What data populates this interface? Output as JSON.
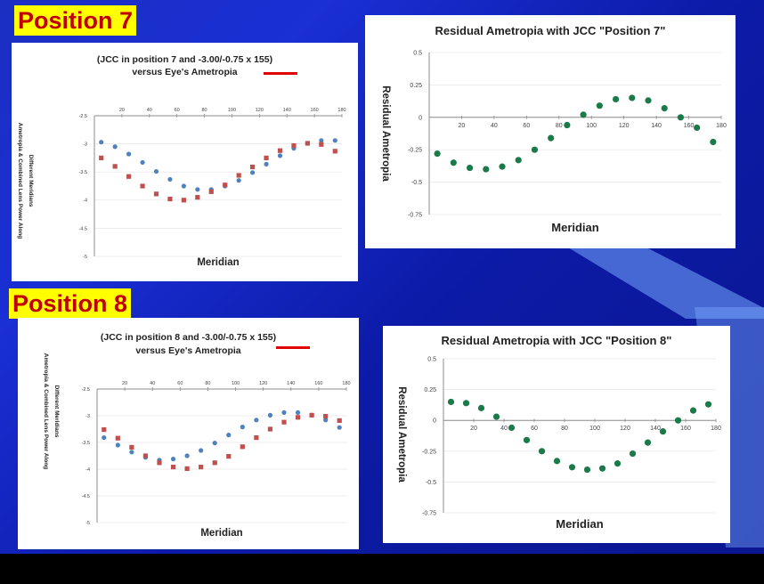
{
  "slide": {
    "position7_label": "Position 7",
    "position8_label": "Position 8"
  },
  "colors": {
    "blue_series": "#4f81bd",
    "red_series": "#c0504d",
    "residual": "#1b7a4a",
    "label_bg": "#ffff00",
    "label_text": "#c00000"
  },
  "chart_data": [
    {
      "id": "p7_power",
      "type": "scatter",
      "title_line1": "(JCC in position 7 and -3.00/-0.75 x 155)",
      "title_line2": "versus Eye's Ametropia",
      "xlabel": "Meridian",
      "ylabel_line1": "Ametropia & Combined Lens Power Along",
      "ylabel_line2": "Different Meridians",
      "xlim": [
        0,
        180
      ],
      "ylim": [
        -5,
        -2.5
      ],
      "xticks": [
        20,
        40,
        60,
        80,
        100,
        120,
        140,
        160,
        180
      ],
      "yticks": [
        -2.5,
        -3,
        -3.5,
        -4,
        -4.5,
        -5
      ],
      "series": [
        {
          "name": "Eye",
          "color": "blue",
          "x": [
            5,
            15,
            25,
            35,
            45,
            55,
            65,
            75,
            85,
            95,
            105,
            115,
            125,
            135,
            145,
            155,
            165,
            175
          ],
          "y": [
            -2.97,
            -3.05,
            -3.18,
            -3.33,
            -3.49,
            -3.63,
            -3.75,
            -3.81,
            -3.81,
            -3.75,
            -3.65,
            -3.51,
            -3.36,
            -3.21,
            -3.08,
            -2.99,
            -2.94,
            -2.94
          ]
        },
        {
          "name": "Combined",
          "color": "red",
          "x": [
            5,
            15,
            25,
            35,
            45,
            55,
            65,
            75,
            85,
            95,
            105,
            115,
            125,
            135,
            145,
            155,
            165,
            175
          ],
          "y": [
            -3.25,
            -3.4,
            -3.58,
            -3.75,
            -3.89,
            -3.98,
            -4.0,
            -3.95,
            -3.85,
            -3.73,
            -3.56,
            -3.41,
            -3.25,
            -3.12,
            -3.03,
            -2.99,
            -3.01,
            -3.13
          ]
        }
      ]
    },
    {
      "id": "p7_resid",
      "type": "scatter",
      "title": "Residual Ametropia with JCC \"Position 7\"",
      "xlabel": "Meridian",
      "ylabel": "Residual Ametropia",
      "xlim": [
        0,
        180
      ],
      "ylim": [
        -0.75,
        0.5
      ],
      "xticks": [
        20,
        40,
        60,
        80,
        100,
        120,
        140,
        160,
        180
      ],
      "yticks": [
        0.5,
        0.25,
        0,
        -0.25,
        -0.5,
        -0.75
      ],
      "series": [
        {
          "name": "Residual",
          "color": "green",
          "x": [
            5,
            15,
            25,
            35,
            45,
            55,
            65,
            75,
            85,
            95,
            105,
            115,
            125,
            135,
            145,
            155,
            165,
            175
          ],
          "y": [
            -0.28,
            -0.35,
            -0.39,
            -0.4,
            -0.38,
            -0.33,
            -0.25,
            -0.16,
            -0.06,
            0.02,
            0.09,
            0.14,
            0.15,
            0.13,
            0.07,
            0.0,
            -0.08,
            -0.19
          ]
        }
      ]
    },
    {
      "id": "p8_power",
      "type": "scatter",
      "title_line1": "(JCC in position 8 and -3.00/-0.75 x 155)",
      "title_line2": "versus Eye's Ametropia",
      "xlabel": "Meridian",
      "ylabel_line1": "Ametropia & Combined Lens Power Along",
      "ylabel_line2": "Different Meridians",
      "xlim": [
        0,
        180
      ],
      "ylim": [
        -5,
        -2.5
      ],
      "xticks": [
        20,
        40,
        60,
        80,
        100,
        120,
        140,
        160,
        180
      ],
      "yticks": [
        -2.5,
        -3,
        -3.5,
        -4,
        -4.5,
        -5
      ],
      "series": [
        {
          "name": "Eye",
          "color": "blue",
          "x": [
            5,
            15,
            25,
            35,
            45,
            55,
            65,
            75,
            85,
            95,
            105,
            115,
            125,
            135,
            145,
            155,
            165,
            175
          ],
          "y": [
            -3.41,
            -3.55,
            -3.68,
            -3.78,
            -3.83,
            -3.81,
            -3.75,
            -3.65,
            -3.51,
            -3.36,
            -3.21,
            -3.08,
            -2.99,
            -2.94,
            -2.94,
            -2.99,
            -3.08,
            -3.22
          ]
        },
        {
          "name": "Combined",
          "color": "red",
          "x": [
            5,
            15,
            25,
            35,
            45,
            55,
            65,
            75,
            85,
            95,
            105,
            115,
            125,
            135,
            145,
            155,
            165,
            175
          ],
          "y": [
            -3.26,
            -3.42,
            -3.59,
            -3.75,
            -3.88,
            -3.96,
            -3.99,
            -3.96,
            -3.88,
            -3.76,
            -3.58,
            -3.41,
            -3.25,
            -3.12,
            -3.03,
            -2.99,
            -3.01,
            -3.09
          ]
        }
      ]
    },
    {
      "id": "p8_resid",
      "type": "scatter",
      "title": "Residual Ametropia with JCC \"Position 8\"",
      "xlabel": "Meridian",
      "ylabel": "Residual Ametropia",
      "xlim": [
        0,
        180
      ],
      "ylim": [
        -0.75,
        0.5
      ],
      "xticks": [
        20,
        40,
        60,
        80,
        100,
        120,
        140,
        160,
        180
      ],
      "yticks": [
        0.5,
        0.25,
        0,
        -0.25,
        -0.5,
        -0.75
      ],
      "series": [
        {
          "name": "Residual",
          "color": "green",
          "x": [
            5,
            15,
            25,
            35,
            45,
            55,
            65,
            75,
            85,
            95,
            105,
            115,
            125,
            135,
            145,
            155,
            165,
            175
          ],
          "y": [
            0.15,
            0.14,
            0.1,
            0.03,
            -0.06,
            -0.16,
            -0.25,
            -0.33,
            -0.38,
            -0.4,
            -0.39,
            -0.35,
            -0.27,
            -0.18,
            -0.09,
            0.0,
            0.08,
            0.13
          ]
        }
      ]
    }
  ]
}
